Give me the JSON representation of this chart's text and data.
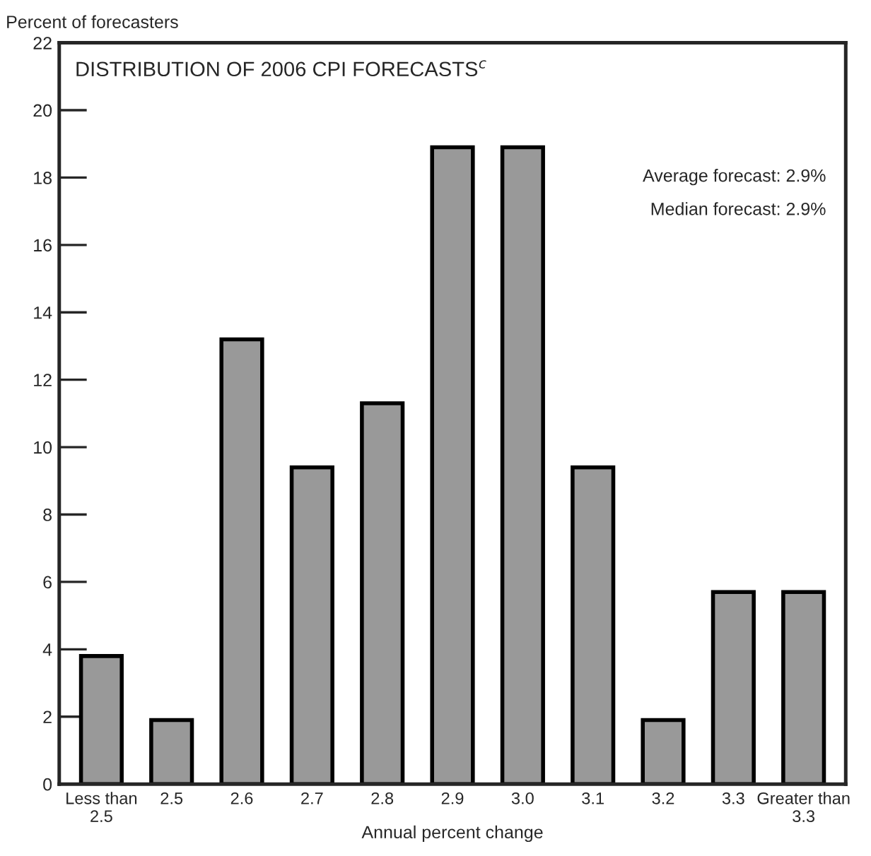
{
  "chart_data": {
    "type": "bar",
    "title": "DISTRIBUTION OF 2006 CPI FORECASTS$^{c}$",
    "ylabel": "Percent of forecasters",
    "xlabel": "Annual percent change",
    "categories": [
      "Less than\n2.5",
      "2.5",
      "2.6",
      "2.7",
      "2.8",
      "2.9",
      "3.0",
      "3.1",
      "3.2",
      "3.3",
      "Greater than\n3.3"
    ],
    "values": [
      3.8,
      1.9,
      13.2,
      9.4,
      11.3,
      18.9,
      18.9,
      9.4,
      1.9,
      5.7,
      5.7
    ],
    "color": "#999999",
    "ylim": [
      0,
      22
    ],
    "yticks": [
      0,
      2,
      4,
      6,
      8,
      10,
      12,
      14,
      16,
      18,
      20,
      22
    ],
    "annotations": [
      "Average forecast: 2.9%",
      "Median forecast: 2.9%"
    ],
    "grid": false,
    "legend": false
  }
}
